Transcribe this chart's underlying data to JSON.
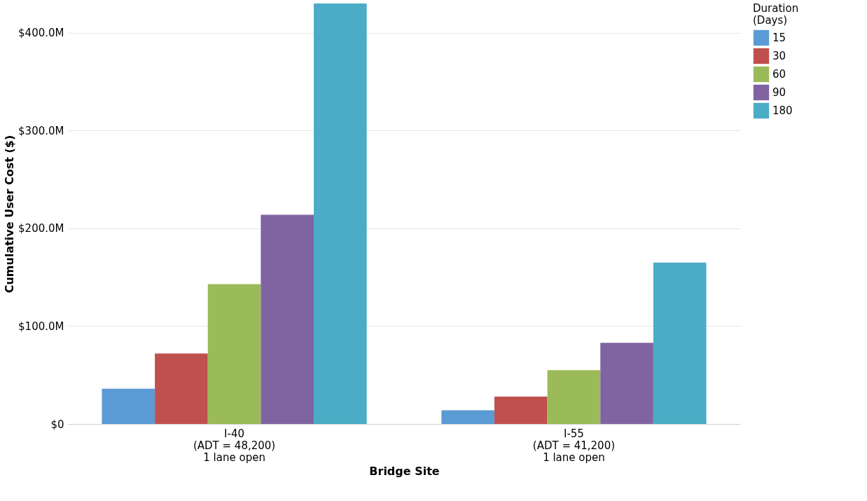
{
  "chart_data": {
    "type": "bar",
    "xlabel": "Bridge Site",
    "ylabel": "Cumulative User Cost ($)",
    "legend_title": "Duration\n(Days)",
    "categories": [
      "I-40\n(ADT = 48,200)\n1 lane open",
      "I-55\n(ADT = 41,200)\n1 lane open"
    ],
    "series": [
      {
        "name": "15",
        "color": "#5b9bd5",
        "values": [
          36,
          14
        ]
      },
      {
        "name": "30",
        "color": "#c0504d",
        "values": [
          72,
          28
        ]
      },
      {
        "name": "60",
        "color": "#9bbb59",
        "values": [
          143,
          55
        ]
      },
      {
        "name": "90",
        "color": "#8064a2",
        "values": [
          214,
          83
        ]
      },
      {
        "name": "180",
        "color": "#4bacc6",
        "values": [
          430,
          165
        ]
      }
    ],
    "ylim": [
      0,
      430
    ],
    "yticks": [
      {
        "value": 0,
        "label": "$0"
      },
      {
        "value": 100,
        "label": "$100.0M"
      },
      {
        "value": 200,
        "label": "$200.0M"
      },
      {
        "value": 300,
        "label": "$300.0M"
      },
      {
        "value": 400,
        "label": "$400.0M"
      }
    ],
    "grid": "y",
    "legend": "top right"
  }
}
